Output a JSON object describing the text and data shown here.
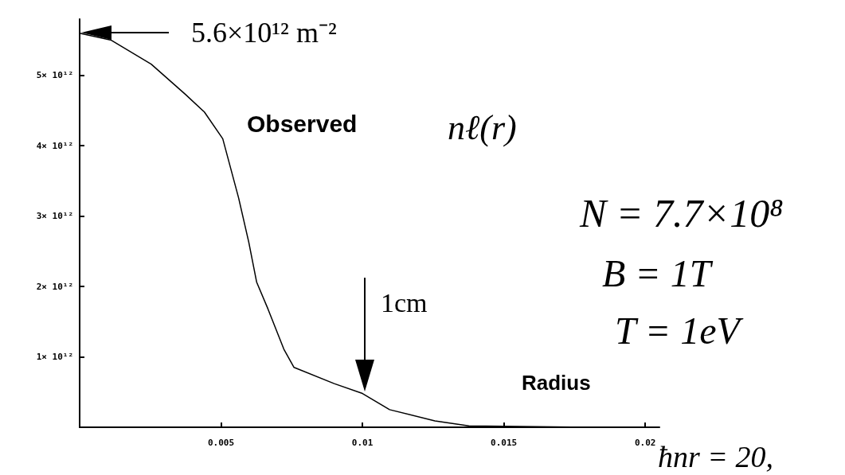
{
  "chart_data": {
    "type": "line",
    "xlabel": "Radius",
    "x": [
      0,
      0.00112,
      0.00253,
      0.00374,
      0.00441,
      0.00506,
      0.00562,
      0.00598,
      0.00626,
      0.00666,
      0.00722,
      0.00758,
      0.009,
      0.01,
      0.01096,
      0.01256,
      0.01376,
      0.01798
    ],
    "series": [
      {
        "color": "#000000",
        "values": [
          5600000000000.0,
          5500000000000.0,
          5160000000000.0,
          4730000000000.0,
          4480000000000.0,
          4100000000000.0,
          3260000000000.0,
          2630000000000.0,
          2060000000000.0,
          1680000000000.0,
          1110000000000.0,
          850000000000.0,
          620000000000.0,
          480000000000.0,
          250000000000.0,
          90000000000.0,
          20000000000.0,
          0
        ]
      }
    ],
    "xlim": [
      0,
      0.0205
    ],
    "xticks": [
      0.005,
      0.01,
      0.015,
      0.02
    ],
    "ylim": [
      0,
      5800000000000.0
    ],
    "yticks": [
      {
        "value": 1000000000000.0,
        "label": "1× 10¹²"
      },
      {
        "value": 2000000000000.0,
        "label": "2× 10¹²"
      },
      {
        "value": 3000000000000.0,
        "label": "3× 10¹²"
      },
      {
        "value": 4000000000000.0,
        "label": "4× 10¹²"
      },
      {
        "value": 5000000000000.0,
        "label": "5× 10¹²"
      }
    ],
    "annotations": [
      "5.6×10¹² m⁻²",
      "Observed",
      "nℓ(r)",
      "N = 7.7×10⁸",
      "B = 1T",
      "T = 1eV",
      "1cm",
      "ħnr = 20,"
    ],
    "grid": false,
    "marker": "none",
    "line_style": "solid"
  }
}
